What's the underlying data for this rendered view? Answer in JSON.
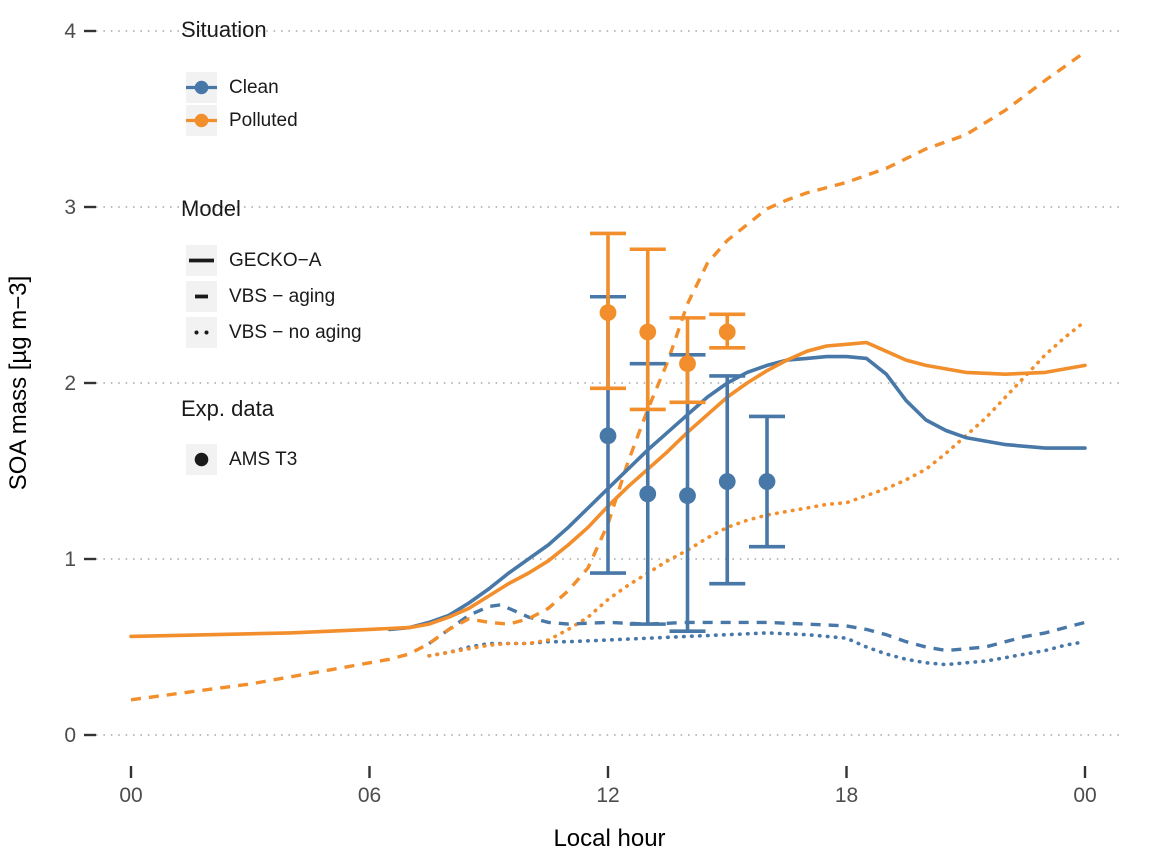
{
  "figure": {
    "background": "#ffffff",
    "text_color": "#1a1a1a",
    "tick_label_color": "#4d4d4d",
    "grid_color": "#bebebe"
  },
  "legend": {
    "situation": {
      "title": "Situation",
      "items": [
        {
          "label": "Clean",
          "color_key": "clean"
        },
        {
          "label": "Polluted",
          "color_key": "polluted"
        }
      ]
    },
    "model": {
      "title": "Model",
      "items": [
        {
          "label": "GECKO−A",
          "linestyle": "solid"
        },
        {
          "label": "VBS − aging",
          "linestyle": "dashed"
        },
        {
          "label": "VBS − no aging",
          "linestyle": "dotted"
        }
      ]
    },
    "exp": {
      "title": "Exp. data",
      "items": [
        {
          "label": "AMS T3",
          "marker": "point"
        }
      ]
    }
  },
  "chart_data": {
    "type": "line",
    "title": "",
    "xlabel": "Local hour",
    "ylabel": "SOA mass [µg m−3]",
    "xlim": [
      0,
      24
    ],
    "ylim": [
      0,
      4
    ],
    "grid": "horizontal dotted",
    "legend_position": "inside top-left",
    "x_ticks": [
      {
        "value": 0,
        "label": "00"
      },
      {
        "value": 6,
        "label": "06"
      },
      {
        "value": 12,
        "label": "12"
      },
      {
        "value": 18,
        "label": "18"
      },
      {
        "value": 24,
        "label": "00"
      }
    ],
    "y_ticks": [
      0,
      1,
      2,
      3,
      4
    ],
    "colors": {
      "clean": "#4878A8",
      "polluted": "#F28E2B"
    },
    "series": [
      {
        "name": "VBS - no aging / Clean",
        "situation": "Clean",
        "model": "VBS - no aging",
        "style": "dotted",
        "color": "clean",
        "points": [
          [
            7.5,
            0.45
          ],
          [
            8,
            0.47
          ],
          [
            8.5,
            0.5
          ],
          [
            9,
            0.52
          ],
          [
            9.5,
            0.52
          ],
          [
            10,
            0.52
          ],
          [
            10.5,
            0.53
          ],
          [
            11,
            0.53
          ],
          [
            12,
            0.54
          ],
          [
            13,
            0.55
          ],
          [
            14,
            0.56
          ],
          [
            15,
            0.57
          ],
          [
            16,
            0.58
          ],
          [
            17,
            0.57
          ],
          [
            17.5,
            0.56
          ],
          [
            18,
            0.55
          ],
          [
            18.5,
            0.5
          ],
          [
            19,
            0.46
          ],
          [
            19.5,
            0.43
          ],
          [
            20,
            0.41
          ],
          [
            20.5,
            0.4
          ],
          [
            21,
            0.41
          ],
          [
            21.5,
            0.42
          ],
          [
            22,
            0.44
          ],
          [
            22.5,
            0.46
          ],
          [
            23,
            0.48
          ],
          [
            23.5,
            0.51
          ],
          [
            24,
            0.53
          ]
        ]
      },
      {
        "name": "VBS - no aging / Polluted",
        "situation": "Polluted",
        "model": "VBS - no aging",
        "style": "dotted",
        "color": "polluted",
        "points": [
          [
            7.5,
            0.45
          ],
          [
            8,
            0.47
          ],
          [
            8.5,
            0.49
          ],
          [
            9,
            0.51
          ],
          [
            9.5,
            0.52
          ],
          [
            10,
            0.52
          ],
          [
            10.5,
            0.54
          ],
          [
            11,
            0.6
          ],
          [
            11.5,
            0.67
          ],
          [
            12,
            0.77
          ],
          [
            12.5,
            0.85
          ],
          [
            13,
            0.92
          ],
          [
            13.5,
            0.99
          ],
          [
            14,
            1.05
          ],
          [
            14.5,
            1.12
          ],
          [
            15,
            1.18
          ],
          [
            15.5,
            1.22
          ],
          [
            16,
            1.25
          ],
          [
            16.5,
            1.27
          ],
          [
            17,
            1.29
          ],
          [
            17.5,
            1.31
          ],
          [
            18,
            1.32
          ],
          [
            18.5,
            1.36
          ],
          [
            19,
            1.4
          ],
          [
            19.5,
            1.45
          ],
          [
            20,
            1.51
          ],
          [
            20.5,
            1.6
          ],
          [
            21,
            1.7
          ],
          [
            21.5,
            1.8
          ],
          [
            22,
            1.92
          ],
          [
            22.5,
            2.04
          ],
          [
            23,
            2.16
          ],
          [
            23.5,
            2.26
          ],
          [
            24,
            2.35
          ]
        ]
      },
      {
        "name": "VBS - aging / Clean",
        "situation": "Clean",
        "model": "VBS - aging",
        "style": "dashed",
        "color": "clean",
        "points": [
          [
            7.5,
            0.52
          ],
          [
            8,
            0.6
          ],
          [
            8.5,
            0.68
          ],
          [
            9,
            0.73
          ],
          [
            9.3,
            0.74
          ],
          [
            9.6,
            0.71
          ],
          [
            10,
            0.67
          ],
          [
            10.5,
            0.64
          ],
          [
            11,
            0.63
          ],
          [
            12,
            0.64
          ],
          [
            13,
            0.63
          ],
          [
            14,
            0.64
          ],
          [
            15,
            0.64
          ],
          [
            16,
            0.64
          ],
          [
            17,
            0.63
          ],
          [
            18,
            0.62
          ],
          [
            18.5,
            0.6
          ],
          [
            19,
            0.57
          ],
          [
            19.5,
            0.53
          ],
          [
            20,
            0.5
          ],
          [
            20.5,
            0.48
          ],
          [
            21,
            0.49
          ],
          [
            21.5,
            0.5
          ],
          [
            22,
            0.53
          ],
          [
            22.5,
            0.56
          ],
          [
            23,
            0.58
          ],
          [
            23.5,
            0.61
          ],
          [
            24,
            0.64
          ]
        ]
      },
      {
        "name": "VBS - aging / Polluted",
        "situation": "Polluted",
        "model": "VBS - aging",
        "style": "dashed",
        "color": "polluted",
        "points": [
          [
            0,
            0.2
          ],
          [
            1,
            0.23
          ],
          [
            2,
            0.26
          ],
          [
            3,
            0.29
          ],
          [
            4,
            0.33
          ],
          [
            5,
            0.37
          ],
          [
            6,
            0.41
          ],
          [
            6.5,
            0.43
          ],
          [
            7,
            0.46
          ],
          [
            7.5,
            0.52
          ],
          [
            8,
            0.6
          ],
          [
            8.5,
            0.66
          ],
          [
            9,
            0.64
          ],
          [
            9.5,
            0.63
          ],
          [
            10,
            0.66
          ],
          [
            10.5,
            0.72
          ],
          [
            11,
            0.82
          ],
          [
            11.5,
            0.95
          ],
          [
            12,
            1.2
          ],
          [
            12.5,
            1.55
          ],
          [
            13,
            1.85
          ],
          [
            13.5,
            2.12
          ],
          [
            14,
            2.45
          ],
          [
            14.5,
            2.68
          ],
          [
            15,
            2.81
          ],
          [
            15.5,
            2.9
          ],
          [
            16,
            2.99
          ],
          [
            16.5,
            3.04
          ],
          [
            17,
            3.08
          ],
          [
            18,
            3.14
          ],
          [
            19,
            3.22
          ],
          [
            20,
            3.33
          ],
          [
            21,
            3.41
          ],
          [
            22,
            3.55
          ],
          [
            23,
            3.72
          ],
          [
            24,
            3.88
          ]
        ]
      },
      {
        "name": "GECKO-A / Clean",
        "situation": "Clean",
        "model": "GECKO-A",
        "style": "solid",
        "color": "clean",
        "points": [
          [
            6.5,
            0.6
          ],
          [
            7,
            0.61
          ],
          [
            7.5,
            0.64
          ],
          [
            8,
            0.68
          ],
          [
            8.5,
            0.75
          ],
          [
            9,
            0.83
          ],
          [
            9.5,
            0.92
          ],
          [
            10,
            1.0
          ],
          [
            10.5,
            1.08
          ],
          [
            11,
            1.18
          ],
          [
            11.5,
            1.29
          ],
          [
            12,
            1.4
          ],
          [
            12.5,
            1.51
          ],
          [
            13,
            1.62
          ],
          [
            13.5,
            1.72
          ],
          [
            14,
            1.82
          ],
          [
            14.5,
            1.92
          ],
          [
            15,
            2.0
          ],
          [
            15.5,
            2.06
          ],
          [
            16,
            2.1
          ],
          [
            16.5,
            2.13
          ],
          [
            17,
            2.14
          ],
          [
            17.5,
            2.15
          ],
          [
            18,
            2.15
          ],
          [
            18.5,
            2.14
          ],
          [
            19,
            2.05
          ],
          [
            19.5,
            1.9
          ],
          [
            20,
            1.79
          ],
          [
            20.5,
            1.73
          ],
          [
            21,
            1.69
          ],
          [
            21.5,
            1.67
          ],
          [
            22,
            1.65
          ],
          [
            23,
            1.63
          ],
          [
            24,
            1.63
          ]
        ]
      },
      {
        "name": "GECKO-A / Polluted",
        "situation": "Polluted",
        "model": "GECKO-A",
        "style": "solid",
        "color": "polluted",
        "points": [
          [
            0,
            0.56
          ],
          [
            1,
            0.565
          ],
          [
            2,
            0.57
          ],
          [
            3,
            0.575
          ],
          [
            4,
            0.58
          ],
          [
            5,
            0.59
          ],
          [
            6,
            0.6
          ],
          [
            7,
            0.61
          ],
          [
            7.5,
            0.63
          ],
          [
            8,
            0.67
          ],
          [
            8.5,
            0.72
          ],
          [
            9,
            0.79
          ],
          [
            9.5,
            0.86
          ],
          [
            10,
            0.92
          ],
          [
            10.5,
            0.99
          ],
          [
            11,
            1.08
          ],
          [
            11.5,
            1.18
          ],
          [
            12,
            1.3
          ],
          [
            12.5,
            1.41
          ],
          [
            13,
            1.51
          ],
          [
            13.5,
            1.61
          ],
          [
            14,
            1.72
          ],
          [
            14.5,
            1.82
          ],
          [
            15,
            1.92
          ],
          [
            15.5,
            2.0
          ],
          [
            16,
            2.07
          ],
          [
            16.5,
            2.13
          ],
          [
            17,
            2.18
          ],
          [
            17.5,
            2.21
          ],
          [
            18,
            2.22
          ],
          [
            18.5,
            2.23
          ],
          [
            19,
            2.18
          ],
          [
            19.5,
            2.13
          ],
          [
            20,
            2.1
          ],
          [
            21,
            2.06
          ],
          [
            22,
            2.05
          ],
          [
            23,
            2.06
          ],
          [
            24,
            2.1
          ]
        ]
      }
    ],
    "exp_points": [
      {
        "name": "AMS T3 / Clean",
        "situation": "Clean",
        "color": "clean",
        "values": [
          {
            "hour": 12,
            "mean": 1.7,
            "low": 0.92,
            "high": 2.49
          },
          {
            "hour": 13,
            "mean": 1.37,
            "low": 0.63,
            "high": 2.11
          },
          {
            "hour": 14,
            "mean": 1.36,
            "low": 0.59,
            "high": 2.16
          },
          {
            "hour": 15,
            "mean": 1.44,
            "low": 0.86,
            "high": 2.04
          },
          {
            "hour": 16,
            "mean": 1.44,
            "low": 1.07,
            "high": 1.81
          }
        ]
      },
      {
        "name": "AMS T3 / Polluted",
        "situation": "Polluted",
        "color": "polluted",
        "values": [
          {
            "hour": 12,
            "mean": 2.4,
            "low": 1.97,
            "high": 2.85
          },
          {
            "hour": 13,
            "mean": 2.29,
            "low": 1.85,
            "high": 2.76
          },
          {
            "hour": 14,
            "mean": 2.11,
            "low": 1.89,
            "high": 2.37
          },
          {
            "hour": 15,
            "mean": 2.29,
            "low": 2.2,
            "high": 2.39
          }
        ]
      }
    ]
  }
}
